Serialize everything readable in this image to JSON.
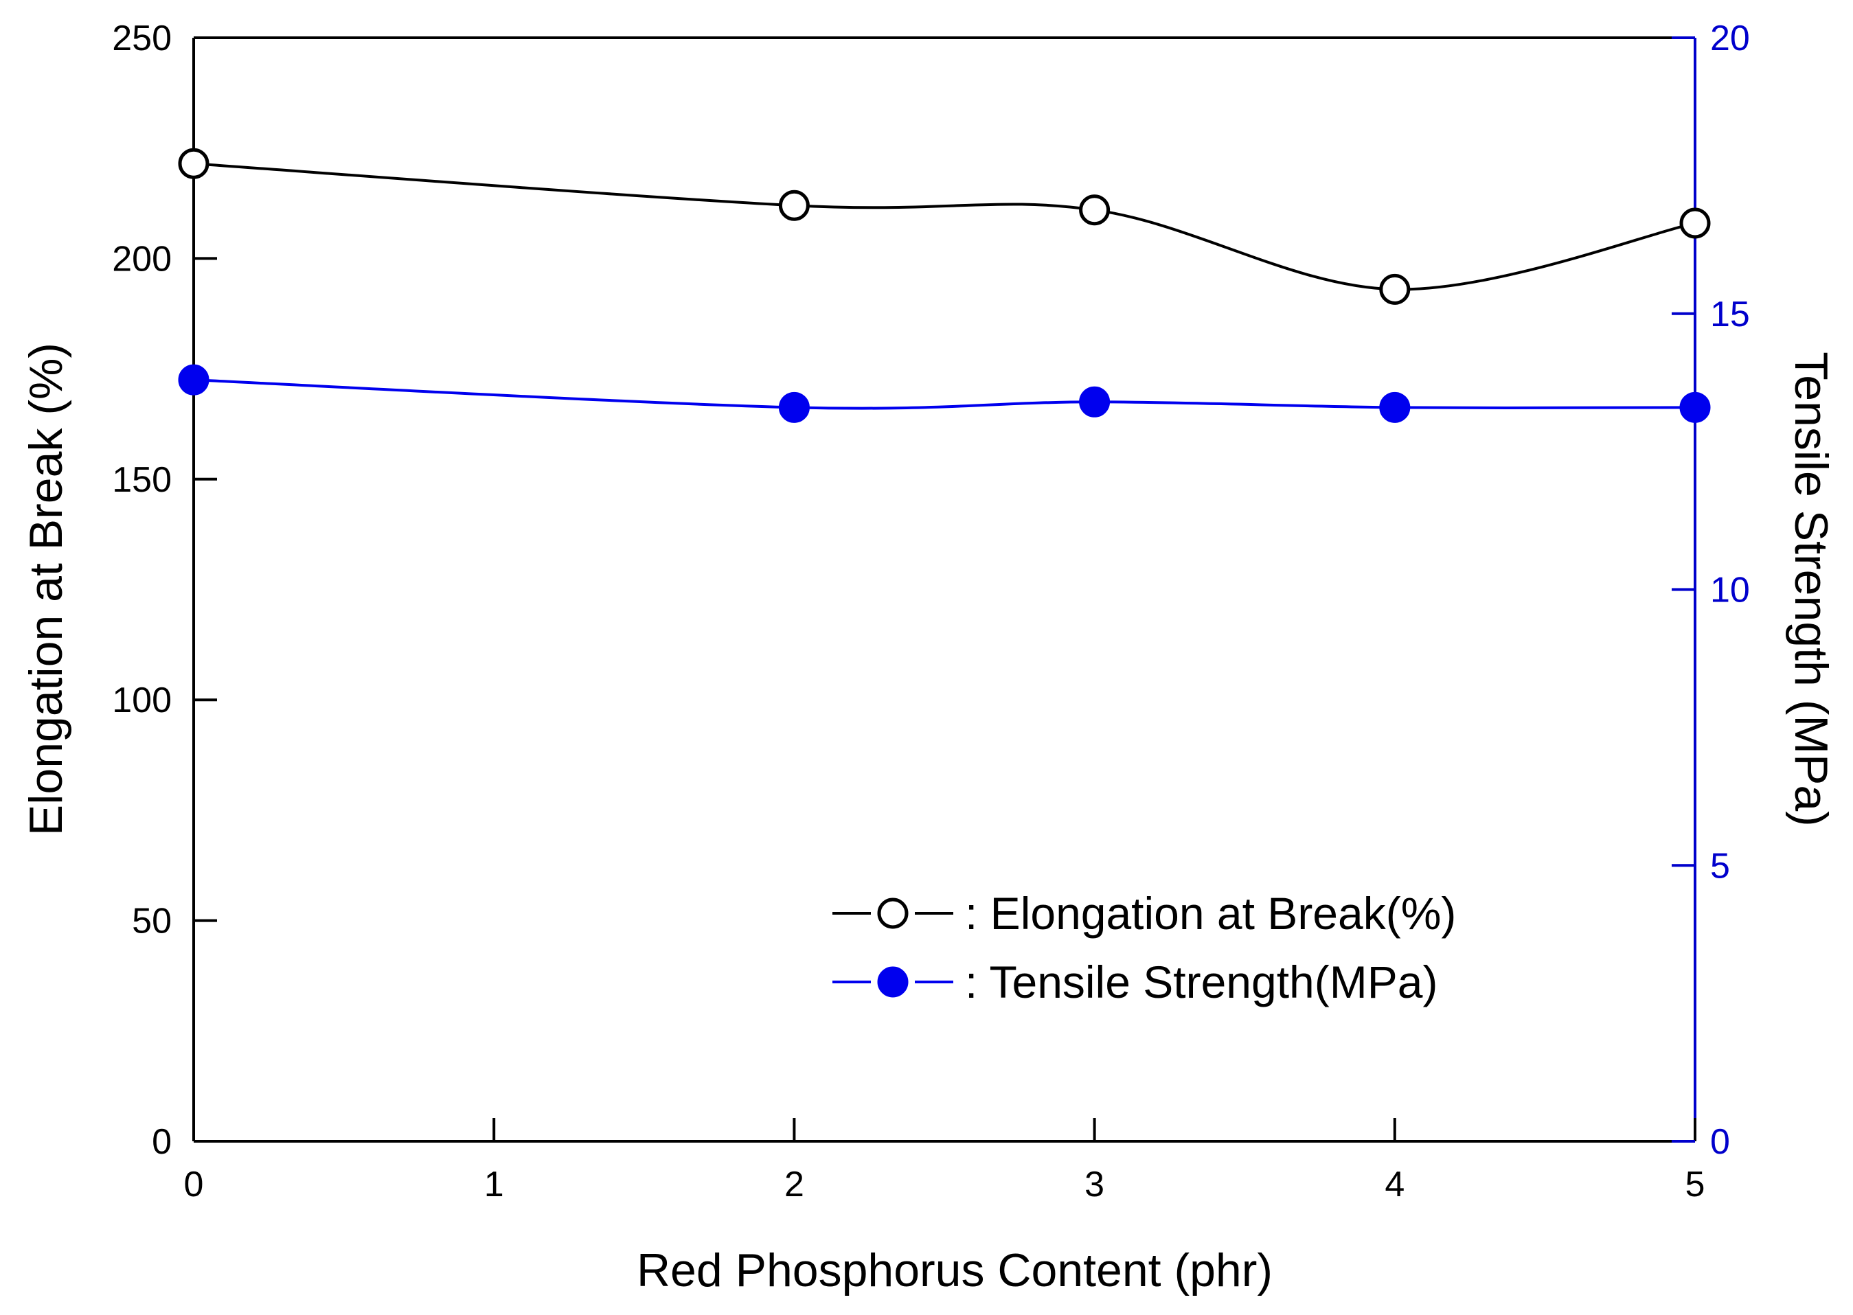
{
  "chart_data": {
    "type": "line",
    "title": "",
    "xlabel": "Red Phosphorus Content (phr)",
    "ylabel_left": "Elongation at Break (%)",
    "ylabel_right": "Tensile Strength (MPa)",
    "xlim": [
      0,
      5
    ],
    "ylim_left": [
      0,
      250
    ],
    "ylim_right": [
      0,
      20
    ],
    "x_ticks": [
      "0",
      "1",
      "2",
      "3",
      "4",
      "5"
    ],
    "y_ticks_left": [
      "0",
      "50",
      "100",
      "150",
      "200",
      "250"
    ],
    "y_ticks_right": [
      "0",
      "5",
      "10",
      "15",
      "20"
    ],
    "grid": false,
    "legend_position": "bottom-right",
    "series": [
      {
        "name": ": Elongation at Break(%)",
        "axis": "left",
        "marker": "open-circle",
        "color": "#000000",
        "x": [
          0,
          2,
          3,
          4,
          5
        ],
        "values": [
          221.5,
          212,
          211,
          193,
          208
        ]
      },
      {
        "name": ": Tensile Strength(MPa)",
        "axis": "right",
        "marker": "filled-circle",
        "color": "#0000ee",
        "x": [
          0,
          2,
          3,
          4,
          5
        ],
        "values": [
          13.8,
          13.3,
          13.4,
          13.3,
          13.3
        ]
      }
    ],
    "right_axis_color": "#0000cc"
  }
}
